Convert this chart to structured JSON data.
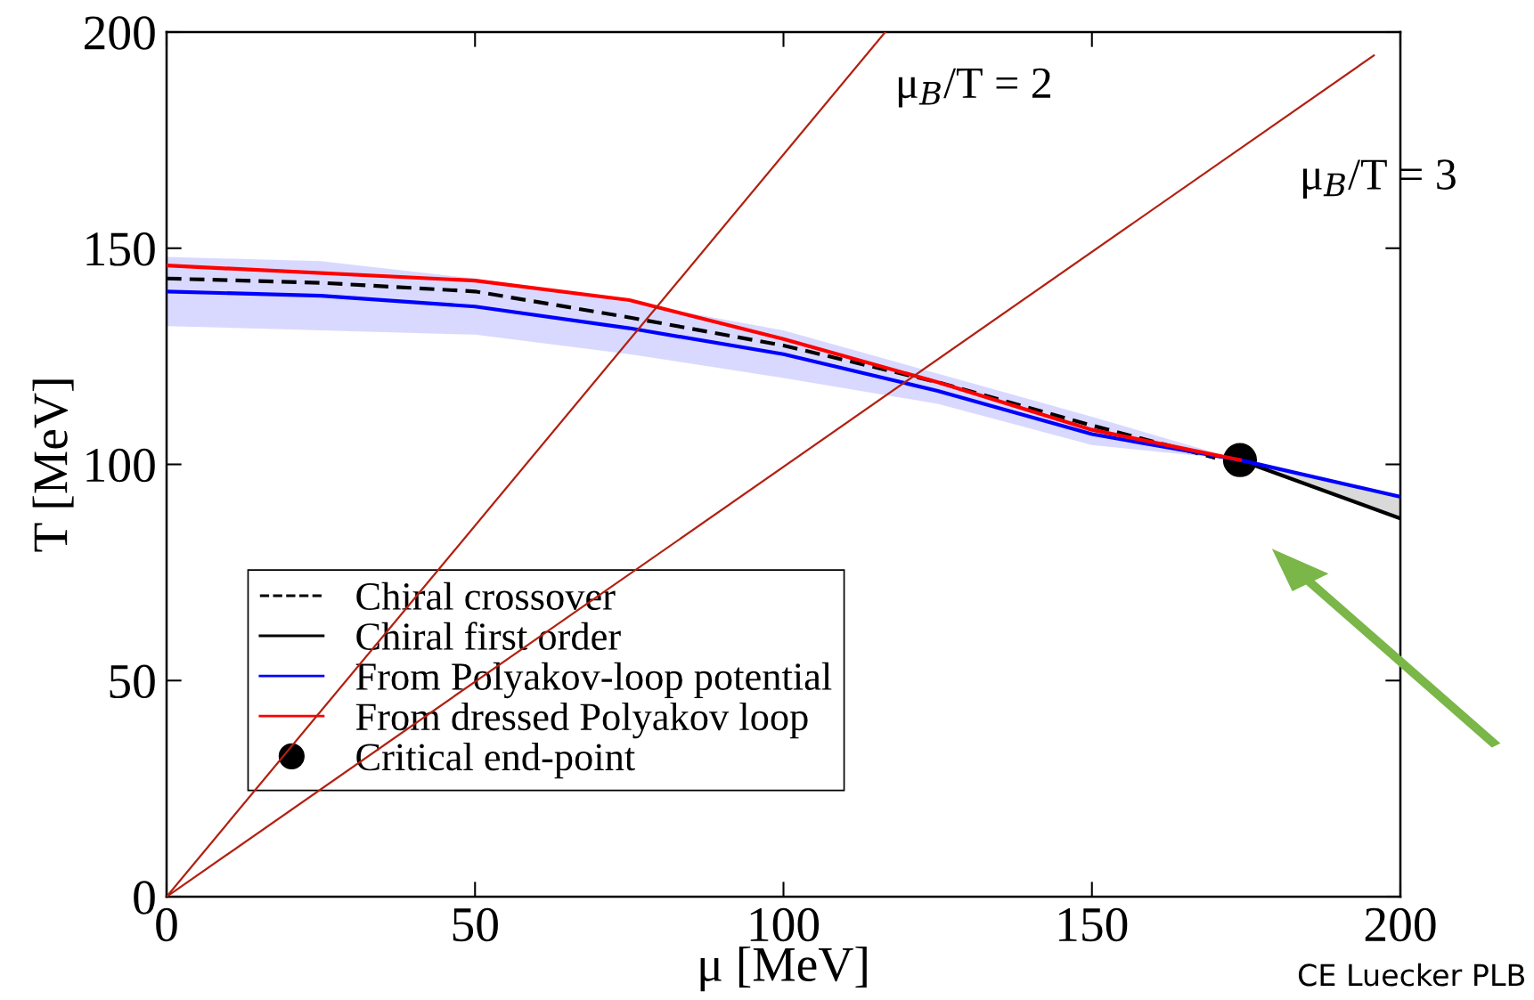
{
  "chart_data": {
    "type": "line",
    "xlabel": "μ [MeV]",
    "ylabel": "T [MeV]",
    "xlim": [
      0,
      200
    ],
    "ylim": [
      0,
      200
    ],
    "xticks": [
      0,
      50,
      100,
      150,
      200
    ],
    "yticks": [
      0,
      50,
      100,
      150,
      200
    ],
    "grid": false,
    "legend": "bottom left",
    "series": [
      {
        "name": "Chiral crossover",
        "color": "#000000",
        "line_style": "dashed",
        "x": [
          0,
          25,
          50,
          75,
          100,
          125,
          150,
          170
        ],
        "values": [
          143,
          142,
          140,
          134,
          127.5,
          119,
          109,
          101.5
        ]
      },
      {
        "name": "Chiral first order",
        "color": "#000000",
        "line_style": "solid",
        "x": [
          174,
          200
        ],
        "values": [
          101,
          87.5
        ],
        "upper": [
          101,
          92.5
        ],
        "lower": [
          101,
          87.5
        ]
      },
      {
        "name": "From Polyakov-loop potential",
        "color": "#0000ff",
        "line_style": "solid",
        "x": [
          0,
          25,
          50,
          75,
          100,
          125,
          150,
          174,
          200
        ],
        "values": [
          140,
          139,
          136.5,
          131.5,
          125.5,
          117,
          107,
          101,
          92.5
        ],
        "upper": [
          148,
          147,
          143,
          137.5,
          131,
          121,
          111,
          101,
          null
        ],
        "lower": [
          132,
          131,
          130,
          125.5,
          120,
          114,
          104.5,
          101,
          null
        ]
      },
      {
        "name": "From dressed Polyakov loop",
        "color": "#ff0000",
        "line_style": "solid",
        "x": [
          0,
          50,
          75,
          100,
          125,
          150,
          174
        ],
        "values": [
          146,
          142.5,
          138,
          129,
          119,
          108,
          101
        ]
      },
      {
        "name": "Critical end-point",
        "type": "scatter",
        "marker": "circle",
        "color": "#000000",
        "x": [
          174
        ],
        "values": [
          101
        ]
      },
      {
        "color": "#b22010",
        "line_style": "solid",
        "x": [
          0,
          116.5
        ],
        "values": [
          0,
          200
        ]
      },
      {
        "color": "#b22010",
        "line_style": "solid",
        "x": [
          0,
          195.7
        ],
        "values": [
          0,
          194.6
        ]
      }
    ],
    "annotations": [
      {
        "text": "μ$_{B}$/T = 2",
        "x": 116.5,
        "y": 200
      },
      {
        "text": "μ$_{B}$/T = 3",
        "x": 195.7,
        "y": 194.6
      },
      "CE Luecker PLB"
    ]
  }
}
